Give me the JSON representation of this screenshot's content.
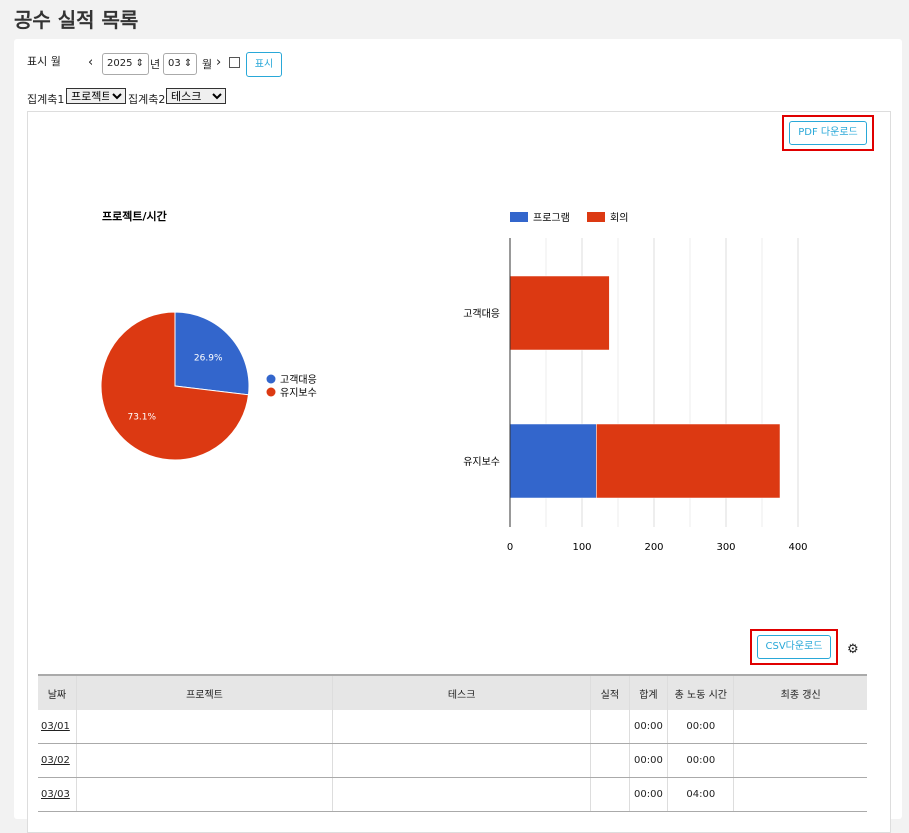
{
  "title": "공수 실적 목록",
  "filter": {
    "label": "표시 월",
    "year": "2025",
    "year_suffix": "년",
    "month": "03",
    "month_suffix": "월",
    "show_button": "표시",
    "axis1_label": "집계축1",
    "axis1_value": "프로젝트",
    "axis2_label": "집계축2",
    "axis2_value": "테스크"
  },
  "pdf_button": "PDF 다운로드",
  "csv_button": "CSV다운로드",
  "colors": {
    "blue": "#3366cc",
    "red": "#dc3912",
    "accent": "#29a8d8"
  },
  "chart_data": [
    {
      "type": "pie",
      "title": "프로젝트/시간",
      "slices": [
        {
          "name": "고객대응",
          "value": 26.9,
          "label": "26.9%"
        },
        {
          "name": "유지보수",
          "value": 73.1,
          "label": "73.1%"
        }
      ],
      "legend": "right"
    },
    {
      "type": "bar",
      "orientation": "horizontal",
      "stacked": true,
      "categories": [
        "고객대응",
        "유지보수"
      ],
      "series": [
        {
          "name": "프로그램",
          "values": [
            0,
            120
          ]
        },
        {
          "name": "회의",
          "values": [
            138,
            255
          ]
        }
      ],
      "xlim": [
        0,
        400
      ],
      "xticks": [
        "0",
        "100",
        "200",
        "300",
        "400"
      ],
      "legend": "top",
      "grid": true
    }
  ],
  "table": {
    "headers": [
      "날짜",
      "프로젝트",
      "테스크",
      "실적",
      "합계",
      "총 노동 시간",
      "최종 갱신"
    ],
    "rows": [
      [
        "03/01",
        "",
        "",
        "",
        "00:00",
        "00:00",
        ""
      ],
      [
        "03/02",
        "",
        "",
        "",
        "00:00",
        "00:00",
        ""
      ],
      [
        "03/03",
        "",
        "",
        "",
        "00:00",
        "04:00",
        ""
      ]
    ]
  }
}
